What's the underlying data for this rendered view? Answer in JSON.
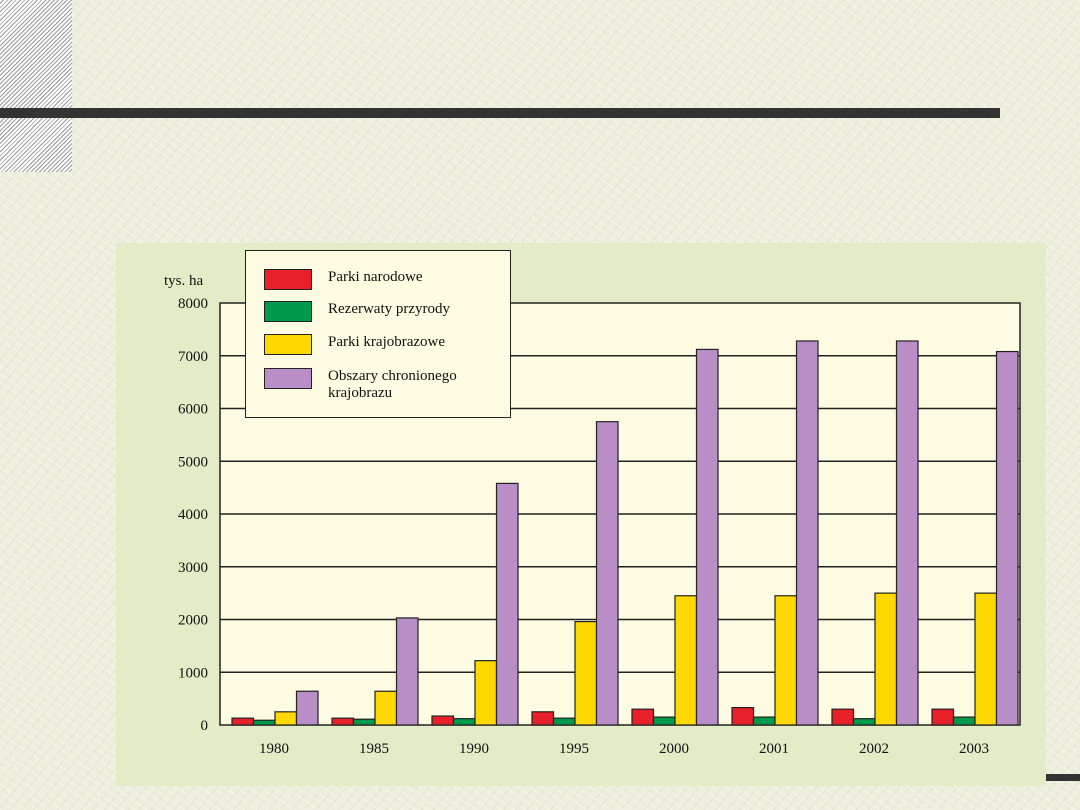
{
  "chart_data": {
    "type": "bar",
    "ylabel": "tys. ha",
    "ylim": [
      0,
      8000
    ],
    "yticks": [
      0,
      1000,
      2000,
      3000,
      4000,
      5000,
      6000,
      7000,
      8000
    ],
    "grid": true,
    "legend_position": "top-left",
    "categories": [
      "1980",
      "1985",
      "1990",
      "1995",
      "2000",
      "2001",
      "2002",
      "2003"
    ],
    "series": [
      {
        "name": "Parki narodowe",
        "color": "#e8202a",
        "values": [
          130,
          130,
          170,
          250,
          300,
          330,
          300,
          300
        ]
      },
      {
        "name": "Rezerwaty przyrody",
        "color": "#009a4d",
        "values": [
          90,
          110,
          120,
          130,
          150,
          150,
          120,
          150
        ]
      },
      {
        "name": "Parki krajobrazowe",
        "color": "#ffd800",
        "values": [
          250,
          640,
          1220,
          1960,
          2450,
          2450,
          2500,
          2500
        ]
      },
      {
        "name": "Obszary chronionego krajobrazu",
        "color": "#b98ec7",
        "values": [
          640,
          2030,
          4580,
          5750,
          7120,
          7280,
          7280,
          7080
        ]
      }
    ]
  }
}
